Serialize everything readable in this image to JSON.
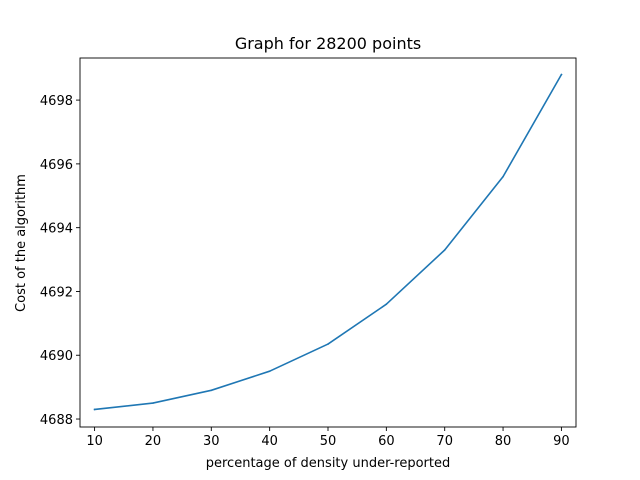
{
  "chart_data": {
    "type": "line",
    "title": "Graph for 28200 points",
    "xlabel": "percentage of density under-reported",
    "ylabel": "Cost of the algorithm",
    "x": [
      10,
      20,
      30,
      40,
      50,
      60,
      70,
      80,
      90
    ],
    "series": [
      {
        "values": [
          4688.3,
          4688.5,
          4688.9,
          4689.5,
          4690.35,
          4691.6,
          4693.3,
          4695.6,
          4698.8
        ],
        "color": "#1f77b4"
      }
    ],
    "xlim": [
      7.5,
      92.5
    ],
    "ylim": [
      4687.75,
      4699.32
    ],
    "xticks": [
      10,
      20,
      30,
      40,
      50,
      60,
      70,
      80,
      90
    ],
    "yticks": [
      4688,
      4690,
      4692,
      4694,
      4696,
      4698
    ],
    "grid": false,
    "legend": "none"
  }
}
